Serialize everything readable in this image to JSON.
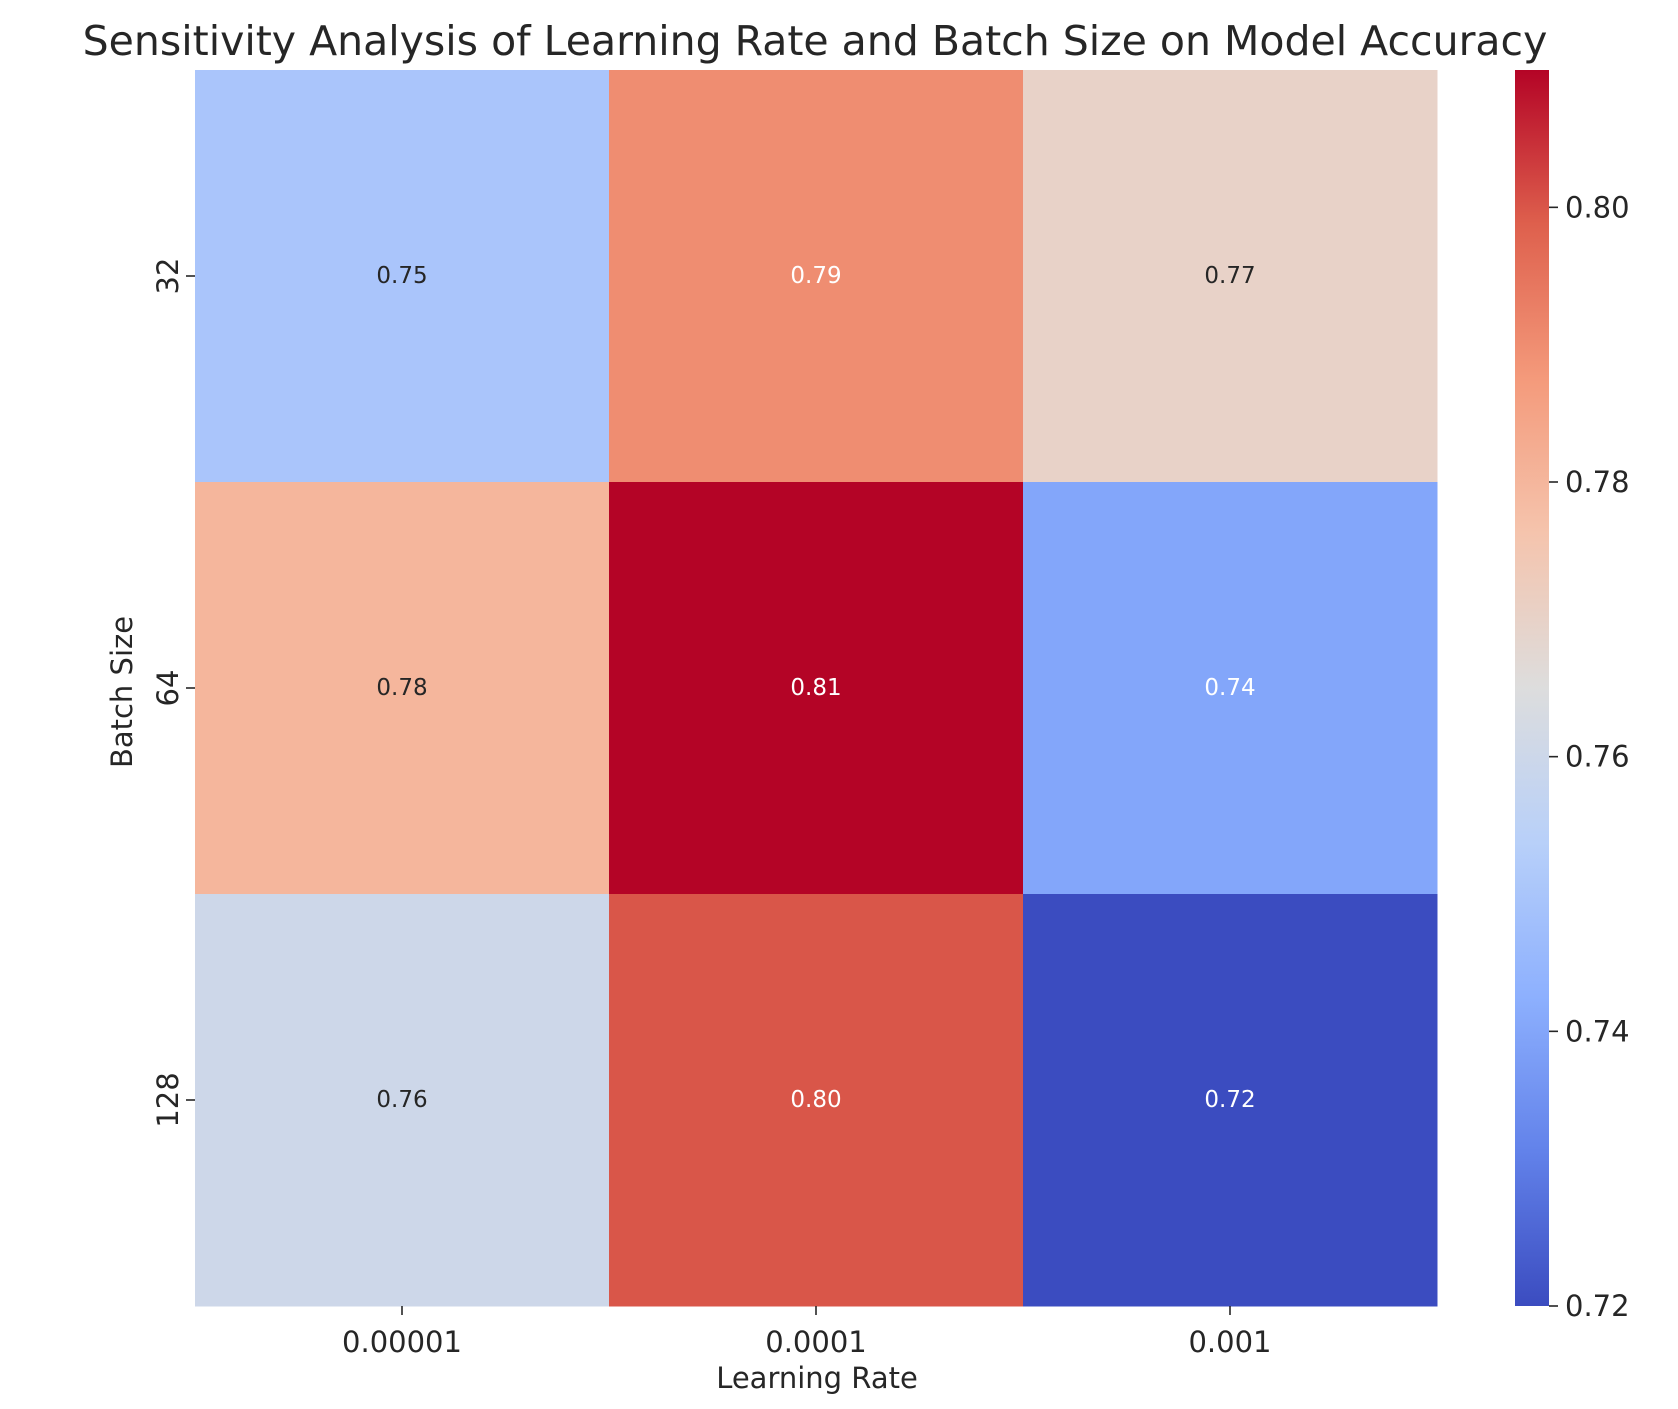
{
  "chart_data": {
    "type": "heatmap",
    "title": "Sensitivity Analysis of Learning Rate and Batch Size on Model Accuracy",
    "xlabel": "Learning Rate",
    "ylabel": "Batch Size",
    "x_categories": [
      "0.00001",
      "0.0001",
      "0.001"
    ],
    "y_categories": [
      "32",
      "64",
      "128"
    ],
    "values": [
      [
        0.75,
        0.79,
        0.77
      ],
      [
        0.78,
        0.81,
        0.74
      ],
      [
        0.76,
        0.8,
        0.72
      ]
    ],
    "value_labels": [
      [
        "0.75",
        "0.79",
        "0.77"
      ],
      [
        "0.78",
        "0.81",
        "0.74"
      ],
      [
        "0.76",
        "0.80",
        "0.72"
      ]
    ],
    "colormap": "coolwarm",
    "colorbar": {
      "vmin": 0.72,
      "vmax": 0.81,
      "ticks": [
        0.72,
        0.74,
        0.76,
        0.78,
        0.8
      ],
      "tick_labels": [
        "0.72",
        "0.74",
        "0.76",
        "0.78",
        "0.80"
      ]
    }
  }
}
